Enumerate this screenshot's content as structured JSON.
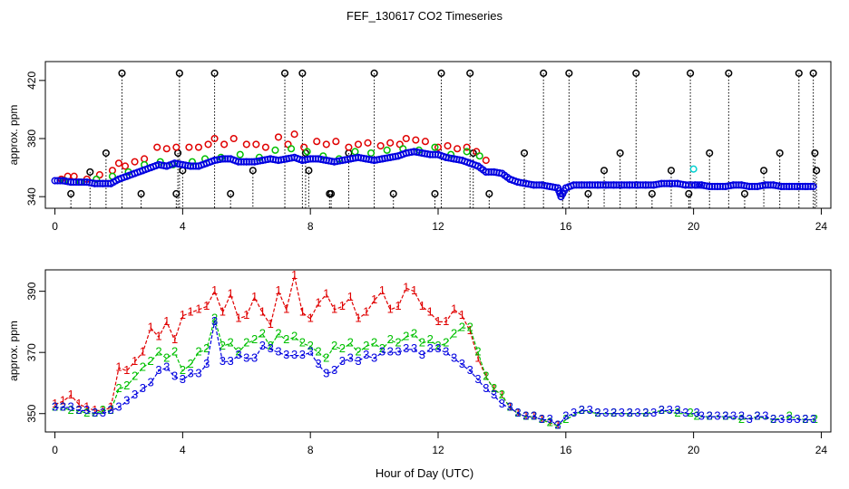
{
  "title": "FEF_130617  CO2 Timeseries",
  "xlabel": "Hour of Day (UTC)",
  "colors": {
    "red": "#e00000",
    "green": "#00c000",
    "blue": "#0000e0",
    "black": "#000000",
    "cyan": "#00d0d0"
  },
  "chart_data": [
    {
      "type": "scatter",
      "ylabel": "approx. ppm",
      "xlim": [
        -0.3,
        24.3
      ],
      "ylim": [
        332,
        433
      ],
      "xticks": [
        0,
        4,
        8,
        12,
        16,
        20,
        24
      ],
      "yticks": [
        340,
        380,
        420
      ],
      "series": [
        {
          "color": "black",
          "marker": "circle",
          "style": "points-with-drops",
          "x": [
            0.5,
            1.1,
            1.6,
            2.1,
            2.7,
            3.8,
            3.85,
            3.9,
            4.0,
            5.0,
            5.5,
            6.2,
            7.2,
            7.75,
            7.85,
            7.95,
            8.6,
            8.65,
            9.2,
            10.0,
            10.6,
            11.9,
            12.1,
            13.0,
            13.1,
            13.6,
            14.7,
            15.3,
            15.9,
            16.1,
            16.7,
            17.2,
            17.7,
            18.2,
            18.7,
            19.3,
            19.85,
            19.9,
            20.5,
            21.1,
            21.6,
            22.2,
            22.7,
            23.3,
            23.75,
            23.8,
            23.85
          ],
          "y": [
            342,
            357,
            370,
            425,
            342,
            342,
            370,
            425,
            358,
            425,
            342,
            358,
            425,
            425,
            370,
            358,
            342,
            342,
            370,
            425,
            342,
            342,
            425,
            425,
            370,
            342,
            370,
            425,
            342,
            425,
            342,
            358,
            370,
            425,
            342,
            358,
            342,
            425,
            370,
            425,
            342,
            358,
            370,
            425,
            425,
            370,
            358
          ]
        },
        {
          "color": "red",
          "marker": "circle",
          "x": [
            0.2,
            0.4,
            0.6,
            1.0,
            1.4,
            1.8,
            2.0,
            2.2,
            2.5,
            2.8,
            3.2,
            3.5,
            3.8,
            4.2,
            4.5,
            4.8,
            5.0,
            5.3,
            5.6,
            6.0,
            6.3,
            6.6,
            7.0,
            7.3,
            7.5,
            7.8,
            8.2,
            8.5,
            8.8,
            9.2,
            9.5,
            9.8,
            10.2,
            10.5,
            10.8,
            11.0,
            11.3,
            11.6,
            12.0,
            12.3,
            12.6,
            12.9,
            13.2,
            13.5
          ],
          "y": [
            352,
            354,
            354,
            352,
            355,
            358,
            363,
            361,
            364,
            366,
            374,
            373,
            374,
            374,
            374,
            376,
            380,
            376,
            380,
            376,
            376,
            374,
            381,
            376,
            383,
            374,
            378,
            376,
            378,
            374,
            376,
            377,
            375,
            377,
            376,
            380,
            379,
            378,
            374,
            375,
            373,
            374,
            371,
            365
          ]
        },
        {
          "color": "green",
          "marker": "circle",
          "x": [
            0.3,
            0.8,
            1.3,
            1.8,
            2.3,
            2.8,
            3.3,
            3.7,
            4.3,
            4.7,
            5.2,
            5.8,
            6.4,
            6.9,
            7.4,
            7.9,
            8.4,
            8.9,
            9.4,
            9.9,
            10.4,
            10.9,
            11.4,
            11.9,
            12.4,
            12.9,
            13.3
          ],
          "y": [
            351,
            350,
            352,
            354,
            357,
            362,
            364,
            362,
            364,
            366,
            367,
            369,
            367,
            372,
            373,
            371,
            368,
            366,
            371,
            370,
            372,
            373,
            372,
            374,
            369,
            371,
            368
          ]
        },
        {
          "color": "cyan",
          "marker": "circle",
          "x": [
            20.0
          ],
          "y": [
            359
          ]
        },
        {
          "color": "blue",
          "marker": "circle",
          "style": "dense-base",
          "x": [
            0,
            0.25,
            0.5,
            0.75,
            1,
            1.25,
            1.5,
            1.75,
            2,
            2.25,
            2.5,
            2.75,
            3,
            3.25,
            3.5,
            3.75,
            4,
            4.25,
            4.5,
            4.75,
            5,
            5.25,
            5.5,
            5.75,
            6,
            6.25,
            6.5,
            6.75,
            7,
            7.25,
            7.5,
            7.75,
            8,
            8.25,
            8.5,
            8.75,
            9,
            9.25,
            9.5,
            9.75,
            10,
            10.25,
            10.5,
            10.75,
            11,
            11.25,
            11.5,
            11.75,
            12,
            12.25,
            12.5,
            12.75,
            13,
            13.25,
            13.5,
            13.75,
            14,
            14.25,
            14.5,
            14.75,
            15,
            15.25,
            15.5,
            15.75,
            15.85,
            16,
            16.25,
            16.5,
            16.75,
            17,
            17.25,
            17.5,
            17.75,
            18,
            18.25,
            18.5,
            18.75,
            19,
            19.25,
            19.5,
            19.75,
            20.05,
            20.25,
            20.5,
            20.75,
            21,
            21.25,
            21.5,
            21.75,
            22,
            22.25,
            22.5,
            22.75,
            23,
            23.25,
            23.5,
            23.75
          ],
          "y": [
            351,
            351,
            350,
            350,
            350,
            349,
            349,
            349,
            352,
            354,
            356,
            358,
            360,
            362,
            361,
            363,
            362,
            361,
            361,
            363,
            365,
            366,
            366,
            364,
            364,
            364,
            365,
            366,
            365,
            366,
            367,
            365,
            366,
            366,
            365,
            364,
            365,
            366,
            367,
            366,
            365,
            366,
            367,
            368,
            370,
            371,
            370,
            369,
            369,
            367,
            366,
            365,
            363,
            361,
            357,
            357,
            356,
            352,
            350,
            349,
            348,
            348,
            347,
            346,
            340,
            346,
            348,
            348,
            348,
            348,
            348,
            348,
            348,
            348,
            348,
            348,
            348,
            349,
            349,
            349,
            348,
            348,
            348,
            347,
            347,
            347,
            348,
            348,
            347,
            347,
            348,
            348,
            347,
            347,
            347,
            347,
            347
          ]
        }
      ]
    },
    {
      "type": "line",
      "ylabel": "approx. ppm",
      "xlim": [
        -0.3,
        24.3
      ],
      "ylim": [
        344,
        397
      ],
      "xticks": [
        0,
        4,
        8,
        12,
        16,
        20,
        24
      ],
      "yticks": [
        350,
        370,
        390
      ],
      "series": [
        {
          "color": "red",
          "marker_label": "1",
          "x": [
            0,
            0.25,
            0.5,
            0.75,
            1,
            1.25,
            1.5,
            1.75,
            2,
            2.25,
            2.5,
            2.75,
            3,
            3.25,
            3.5,
            3.75,
            4,
            4.25,
            4.5,
            4.75,
            5,
            5.25,
            5.5,
            5.75,
            6,
            6.25,
            6.5,
            6.75,
            7,
            7.25,
            7.5,
            7.75,
            8,
            8.25,
            8.5,
            8.75,
            9,
            9.25,
            9.5,
            9.75,
            10,
            10.25,
            10.5,
            10.75,
            11,
            11.25,
            11.5,
            11.75,
            12,
            12.25,
            12.5,
            12.75,
            13,
            13.25,
            13.5,
            13.75,
            14,
            14.25,
            14.5,
            14.75,
            15,
            15.25,
            15.5,
            15.75
          ],
          "y": [
            353,
            354,
            356,
            353,
            352,
            351,
            351,
            352,
            365,
            364,
            367,
            370,
            378,
            375,
            380,
            374,
            382,
            383,
            384,
            385,
            390,
            383,
            389,
            381,
            382,
            388,
            383,
            379,
            390,
            384,
            395,
            383,
            381,
            386,
            389,
            384,
            385,
            388,
            381,
            383,
            387,
            390,
            384,
            385,
            391,
            390,
            385,
            383,
            380,
            380,
            384,
            382,
            377,
            368,
            362,
            358,
            356,
            352,
            350,
            349,
            349,
            348,
            347,
            346
          ]
        },
        {
          "color": "green",
          "marker_label": "2",
          "x": [
            0,
            0.25,
            0.5,
            0.75,
            1,
            1.25,
            1.5,
            1.75,
            2,
            2.25,
            2.5,
            2.75,
            3,
            3.25,
            3.5,
            3.75,
            4,
            4.25,
            4.5,
            4.75,
            5,
            5.25,
            5.5,
            5.75,
            6,
            6.25,
            6.5,
            6.75,
            7,
            7.25,
            7.5,
            7.75,
            8,
            8.25,
            8.5,
            8.75,
            9,
            9.25,
            9.5,
            9.75,
            10,
            10.25,
            10.5,
            10.75,
            11,
            11.25,
            11.5,
            11.75,
            12,
            12.25,
            12.5,
            12.75,
            13,
            13.25,
            13.5,
            13.75,
            14,
            14.25,
            14.5,
            14.75,
            15,
            15.25,
            15.5,
            15.75,
            16,
            16.5,
            17,
            17.5,
            18,
            18.5,
            19,
            19.5,
            19.9,
            20.1,
            20.5,
            21,
            21.5,
            22,
            22.5,
            23,
            23.5,
            23.8
          ],
          "y": [
            352,
            352,
            351,
            351,
            350,
            350,
            351,
            351,
            358,
            359,
            362,
            365,
            367,
            370,
            368,
            370,
            364,
            366,
            370,
            371,
            381,
            372,
            373,
            370,
            373,
            374,
            376,
            372,
            376,
            374,
            375,
            373,
            372,
            370,
            368,
            372,
            371,
            373,
            370,
            372,
            373,
            371,
            374,
            373,
            375,
            376,
            373,
            374,
            372,
            373,
            376,
            378,
            378,
            370,
            362,
            358,
            356,
            352,
            350,
            349,
            349,
            348,
            347,
            346,
            348,
            351,
            350,
            350,
            350,
            350,
            351,
            350,
            350,
            349,
            349,
            349,
            348,
            349,
            348,
            349,
            348,
            348
          ]
        },
        {
          "color": "blue",
          "marker_label": "3",
          "x": [
            0,
            0.25,
            0.5,
            0.75,
            1,
            1.25,
            1.5,
            1.75,
            2,
            2.25,
            2.5,
            2.75,
            3,
            3.25,
            3.5,
            3.75,
            4,
            4.25,
            4.5,
            4.75,
            5,
            5.25,
            5.5,
            5.75,
            6,
            6.25,
            6.5,
            6.75,
            7,
            7.25,
            7.5,
            7.75,
            8,
            8.25,
            8.5,
            8.75,
            9,
            9.25,
            9.5,
            9.75,
            10,
            10.25,
            10.5,
            10.75,
            11,
            11.25,
            11.5,
            11.75,
            12,
            12.25,
            12.5,
            12.75,
            13,
            13.25,
            13.5,
            13.75,
            14,
            14.25,
            14.5,
            14.75,
            15,
            15.25,
            15.5,
            15.75,
            16,
            16.25,
            16.5,
            16.75,
            17,
            17.25,
            17.5,
            17.75,
            18,
            18.25,
            18.5,
            18.75,
            19,
            19.25,
            19.5,
            19.75,
            20.1,
            20.25,
            20.5,
            20.75,
            21,
            21.25,
            21.5,
            21.75,
            22,
            22.25,
            22.5,
            22.75,
            23,
            23.25,
            23.5,
            23.75
          ],
          "y": [
            352,
            352,
            352,
            351,
            351,
            350,
            350,
            351,
            352,
            354,
            356,
            358,
            360,
            364,
            365,
            362,
            361,
            363,
            363,
            366,
            380,
            367,
            367,
            369,
            368,
            368,
            372,
            371,
            370,
            369,
            369,
            369,
            370,
            366,
            363,
            364,
            367,
            368,
            367,
            369,
            368,
            370,
            370,
            370,
            371,
            371,
            369,
            371,
            371,
            370,
            368,
            366,
            364,
            361,
            358,
            356,
            353,
            352,
            350,
            349,
            349,
            348,
            348,
            346,
            349,
            350,
            351,
            351,
            350,
            350,
            350,
            350,
            350,
            350,
            350,
            350,
            351,
            351,
            351,
            350,
            350,
            349,
            349,
            349,
            349,
            349,
            349,
            348,
            349,
            349,
            348,
            348,
            348,
            348,
            348,
            348
          ]
        }
      ]
    }
  ]
}
